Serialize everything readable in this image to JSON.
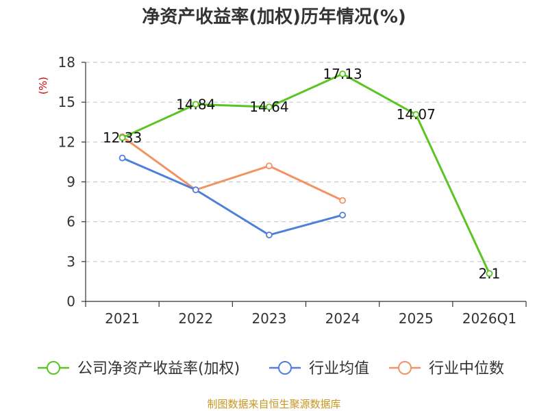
{
  "chart_data": {
    "type": "line",
    "title": "净资产收益率(加权)历年情况(%)",
    "ylabel": "(%)",
    "xlabel": "",
    "categories": [
      "2021",
      "2022",
      "2023",
      "2024",
      "2025",
      "2026Q1"
    ],
    "ylim": [
      0,
      18
    ],
    "yticks": [
      "0",
      "3",
      "6",
      "9",
      "12",
      "15",
      "18"
    ],
    "grid": true,
    "legend_position": "bottom",
    "series": [
      {
        "name": "公司净资产收益率(加权)",
        "color": "#5ac420",
        "values": [
          12.33,
          14.84,
          14.64,
          17.13,
          14.07,
          2.1
        ],
        "labels": [
          "12.33",
          "14.84",
          "14.64",
          "17.13",
          "14.07",
          "2.1"
        ]
      },
      {
        "name": "行业均值",
        "color": "#4f7fdc",
        "values": [
          10.8,
          8.4,
          5.0,
          6.5,
          null,
          null
        ]
      },
      {
        "name": "行业中位数",
        "color": "#f39262",
        "values": [
          12.4,
          8.4,
          10.2,
          7.6,
          null,
          null
        ]
      }
    ]
  },
  "source": "制图数据来自恒生聚源数据库"
}
